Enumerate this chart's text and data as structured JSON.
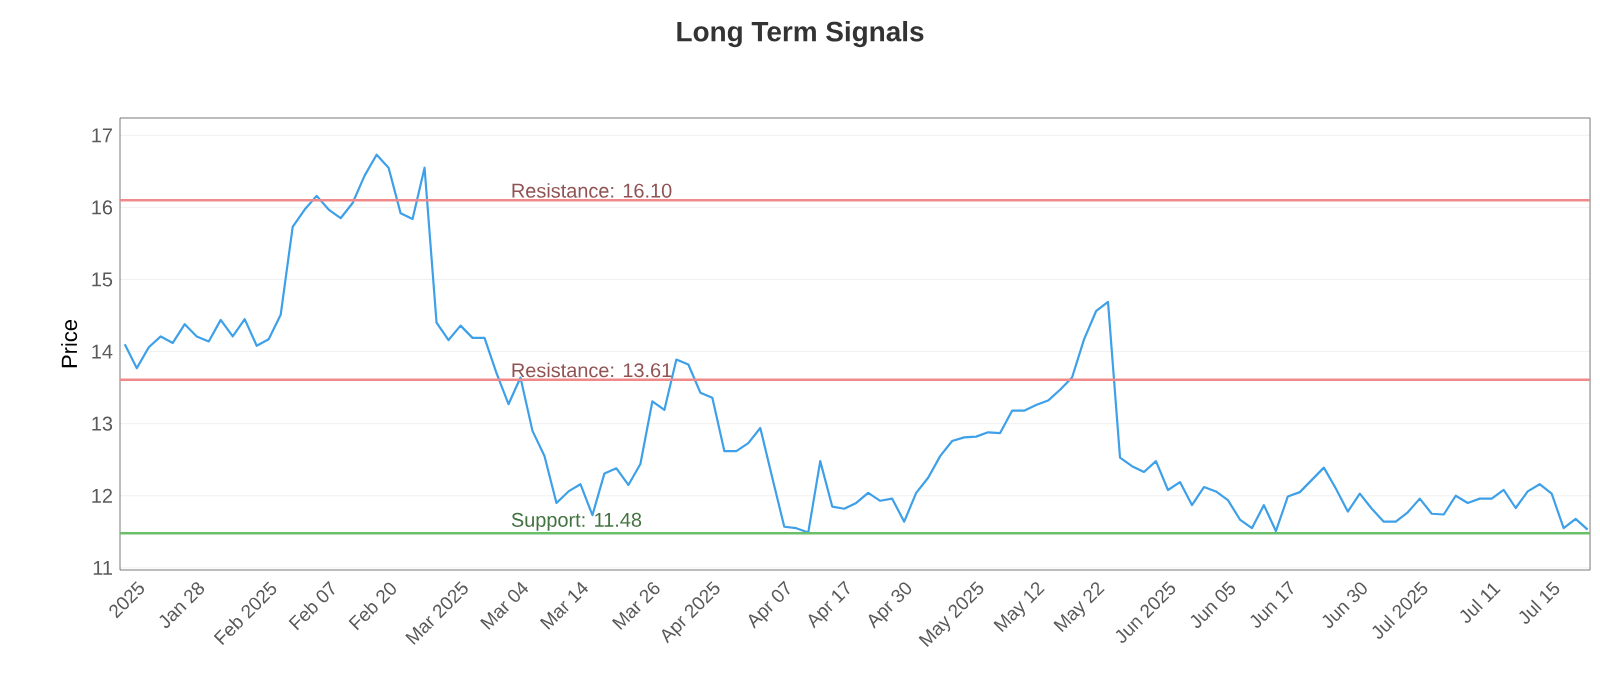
{
  "chart_data": {
    "type": "line",
    "title": "Long Term Signals",
    "ylabel": "Price",
    "categories": [
      null,
      "2025",
      null,
      null,
      null,
      null,
      "Jan 28",
      null,
      null,
      null,
      null,
      null,
      "Feb 2025",
      null,
      null,
      null,
      null,
      "Feb 07",
      null,
      null,
      null,
      null,
      "Feb 20",
      null,
      null,
      null,
      null,
      null,
      "Mar 2025",
      null,
      null,
      null,
      null,
      "Mar 04",
      null,
      null,
      null,
      null,
      "Mar 14",
      null,
      null,
      null,
      null,
      null,
      "Mar 26",
      null,
      null,
      null,
      null,
      "Apr 2025",
      null,
      null,
      null,
      null,
      null,
      "Apr 07",
      null,
      null,
      null,
      null,
      "Apr 17",
      null,
      null,
      null,
      null,
      "Apr 30",
      null,
      null,
      null,
      null,
      null,
      "May 2025",
      null,
      null,
      null,
      null,
      "May 12",
      null,
      null,
      null,
      null,
      "May 22",
      null,
      null,
      null,
      null,
      null,
      "Jun 2025",
      null,
      null,
      null,
      null,
      "Jun 05",
      null,
      null,
      null,
      null,
      "Jun 17",
      null,
      null,
      null,
      null,
      null,
      "Jun 30",
      null,
      null,
      null,
      null,
      "Jul 2025",
      null,
      null,
      null,
      null,
      null,
      "Jul 11",
      null,
      null,
      null,
      null,
      "Jul 15",
      null,
      null,
      null
    ],
    "series": [
      {
        "color": "#3ea0e8",
        "values": [
          14.1,
          13.77,
          14.06,
          14.21,
          14.12,
          14.38,
          14.21,
          14.14,
          14.44,
          14.21,
          14.45,
          14.08,
          14.17,
          14.51,
          15.73,
          15.97,
          16.16,
          15.97,
          15.85,
          16.06,
          16.44,
          16.73,
          16.55,
          15.92,
          15.84,
          16.55,
          14.4,
          14.16,
          14.36,
          14.19,
          14.19,
          13.7,
          13.27,
          13.64,
          12.9,
          12.55,
          11.9,
          12.06,
          12.16,
          11.73,
          12.31,
          12.38,
          12.15,
          12.44,
          13.31,
          13.19,
          13.89,
          13.82,
          13.43,
          13.36,
          12.62,
          12.62,
          12.73,
          12.94,
          12.25,
          11.57,
          11.55,
          11.49,
          12.48,
          11.85,
          11.82,
          11.9,
          12.04,
          11.93,
          11.96,
          11.64,
          12.04,
          12.25,
          12.55,
          12.76,
          12.81,
          12.82,
          12.88,
          12.87,
          13.18,
          13.18,
          13.26,
          13.32,
          13.47,
          13.64,
          14.17,
          14.56,
          14.69,
          12.53,
          12.41,
          12.33,
          12.48,
          12.08,
          12.19,
          11.87,
          12.12,
          12.06,
          11.94,
          11.67,
          11.55,
          11.87,
          11.51,
          11.99,
          12.05,
          12.22,
          12.39,
          12.1,
          11.78,
          12.03,
          11.82,
          11.64,
          11.64,
          11.77,
          11.96,
          11.75,
          11.74,
          12.0,
          11.9,
          11.96,
          11.96,
          12.08,
          11.83,
          12.06,
          12.16,
          12.03,
          11.55,
          11.68,
          11.53
        ]
      }
    ],
    "ylim": [
      10.97,
      17.24
    ],
    "yticks": [
      11,
      12,
      13,
      14,
      15,
      16,
      17
    ],
    "grid": "y",
    "marker": "none",
    "line_style": "solid",
    "ref_lines": [
      {
        "axis": "y",
        "value": 16.1,
        "label": "Resistance: 16.10",
        "color": "#f08a8a"
      },
      {
        "axis": "y",
        "value": 13.61,
        "label": "Resistance: 13.61",
        "color": "#f08a8a"
      },
      {
        "axis": "y",
        "value": 11.48,
        "label": "Support: 11.48",
        "color": "#6cbf6a"
      }
    ]
  }
}
